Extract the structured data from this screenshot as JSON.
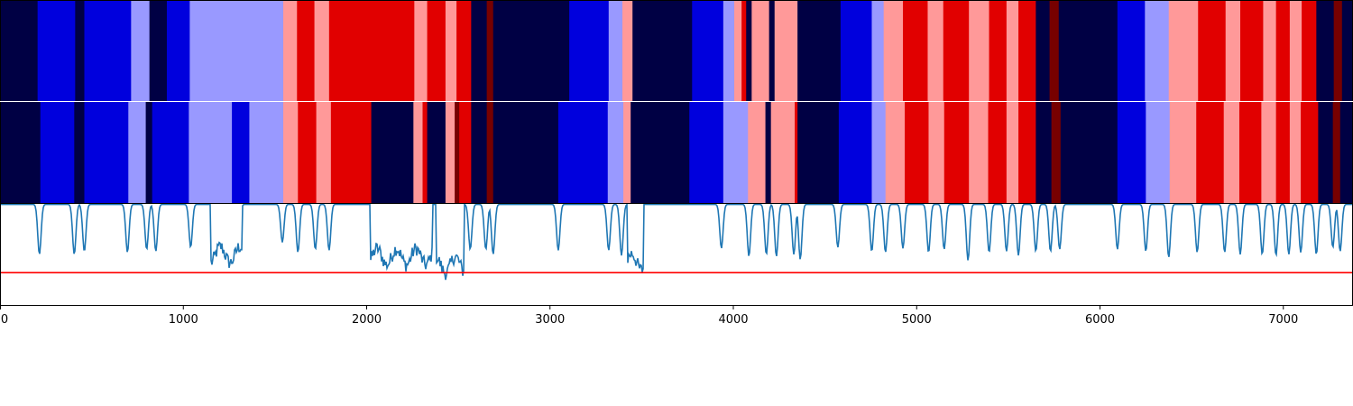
{
  "chart_data": [
    {
      "type": "heatmap",
      "title": "",
      "x_range": [
        0,
        7380
      ],
      "palette": {
        "dark_blue": "#000044",
        "blue": "#0000dd",
        "light_blue": "#9999ff",
        "light_red": "#ff9999",
        "red": "#e10000",
        "dark_red": "#770000"
      },
      "segments": [
        [
          0,
          205,
          "dark_blue"
        ],
        [
          205,
          410,
          "blue"
        ],
        [
          410,
          460,
          "dark_blue"
        ],
        [
          460,
          715,
          "blue"
        ],
        [
          715,
          815,
          "light_blue"
        ],
        [
          815,
          910,
          "dark_blue"
        ],
        [
          910,
          1035,
          "blue"
        ],
        [
          1035,
          1545,
          "light_blue"
        ],
        [
          1545,
          1620,
          "light_red"
        ],
        [
          1620,
          1715,
          "red"
        ],
        [
          1715,
          1795,
          "light_red"
        ],
        [
          1795,
          2260,
          "red"
        ],
        [
          2260,
          2330,
          "light_red"
        ],
        [
          2330,
          2430,
          "red"
        ],
        [
          2430,
          2490,
          "light_red"
        ],
        [
          2490,
          2570,
          "red"
        ],
        [
          2570,
          2655,
          "dark_blue"
        ],
        [
          2655,
          2690,
          "dark_red"
        ],
        [
          2690,
          3105,
          "dark_blue"
        ],
        [
          3105,
          3320,
          "blue"
        ],
        [
          3320,
          3395,
          "light_blue"
        ],
        [
          3395,
          3450,
          "light_red"
        ],
        [
          3450,
          3775,
          "dark_blue"
        ],
        [
          3775,
          3945,
          "blue"
        ],
        [
          3945,
          4005,
          "light_blue"
        ],
        [
          4005,
          4045,
          "light_red"
        ],
        [
          4045,
          4070,
          "red"
        ],
        [
          4070,
          4100,
          "dark_blue"
        ],
        [
          4100,
          4195,
          "light_red"
        ],
        [
          4195,
          4225,
          "dark_blue"
        ],
        [
          4225,
          4350,
          "light_red"
        ],
        [
          4350,
          4585,
          "dark_blue"
        ],
        [
          4585,
          4755,
          "blue"
        ],
        [
          4755,
          4820,
          "light_blue"
        ],
        [
          4820,
          4925,
          "light_red"
        ],
        [
          4925,
          5060,
          "red"
        ],
        [
          5060,
          5145,
          "light_red"
        ],
        [
          5145,
          5285,
          "red"
        ],
        [
          5285,
          5395,
          "light_red"
        ],
        [
          5395,
          5490,
          "red"
        ],
        [
          5490,
          5555,
          "light_red"
        ],
        [
          5555,
          5650,
          "red"
        ],
        [
          5650,
          5725,
          "dark_blue"
        ],
        [
          5725,
          5775,
          "dark_red"
        ],
        [
          5775,
          6095,
          "dark_blue"
        ],
        [
          6095,
          6245,
          "blue"
        ],
        [
          6245,
          6375,
          "light_blue"
        ],
        [
          6375,
          6535,
          "light_red"
        ],
        [
          6535,
          6685,
          "red"
        ],
        [
          6685,
          6765,
          "light_red"
        ],
        [
          6765,
          6890,
          "red"
        ],
        [
          6890,
          6960,
          "light_red"
        ],
        [
          6960,
          7035,
          "red"
        ],
        [
          7035,
          7100,
          "light_red"
        ],
        [
          7100,
          7180,
          "red"
        ],
        [
          7180,
          7275,
          "dark_blue"
        ],
        [
          7275,
          7320,
          "dark_red"
        ],
        [
          7320,
          7380,
          "dark_blue"
        ]
      ]
    },
    {
      "type": "heatmap",
      "title": "",
      "x_range": [
        0,
        7380
      ],
      "segments": [
        [
          0,
          220,
          "dark_blue"
        ],
        [
          220,
          405,
          "blue"
        ],
        [
          405,
          460,
          "dark_blue"
        ],
        [
          460,
          700,
          "blue"
        ],
        [
          700,
          795,
          "light_blue"
        ],
        [
          795,
          830,
          "dark_blue"
        ],
        [
          830,
          1030,
          "blue"
        ],
        [
          1030,
          1265,
          "light_blue"
        ],
        [
          1265,
          1360,
          "blue"
        ],
        [
          1360,
          1545,
          "light_blue"
        ],
        [
          1545,
          1625,
          "light_red"
        ],
        [
          1625,
          1725,
          "red"
        ],
        [
          1725,
          1805,
          "light_red"
        ],
        [
          1805,
          2025,
          "red"
        ],
        [
          2025,
          2255,
          "dark_blue"
        ],
        [
          2255,
          2305,
          "light_red"
        ],
        [
          2305,
          2330,
          "red"
        ],
        [
          2330,
          2430,
          "dark_blue"
        ],
        [
          2430,
          2480,
          "light_red"
        ],
        [
          2480,
          2505,
          "dark_red"
        ],
        [
          2505,
          2570,
          "red"
        ],
        [
          2570,
          2655,
          "dark_blue"
        ],
        [
          2655,
          2690,
          "dark_red"
        ],
        [
          2690,
          3045,
          "dark_blue"
        ],
        [
          3045,
          3315,
          "blue"
        ],
        [
          3315,
          3400,
          "light_blue"
        ],
        [
          3400,
          3440,
          "light_red"
        ],
        [
          3440,
          3760,
          "dark_blue"
        ],
        [
          3760,
          3945,
          "blue"
        ],
        [
          3945,
          4080,
          "light_blue"
        ],
        [
          4080,
          4175,
          "light_red"
        ],
        [
          4175,
          4205,
          "dark_blue"
        ],
        [
          4205,
          4335,
          "light_red"
        ],
        [
          4335,
          4350,
          "red"
        ],
        [
          4350,
          4575,
          "dark_blue"
        ],
        [
          4575,
          4755,
          "blue"
        ],
        [
          4755,
          4830,
          "light_blue"
        ],
        [
          4830,
          4935,
          "light_red"
        ],
        [
          4935,
          5065,
          "red"
        ],
        [
          5065,
          5150,
          "light_red"
        ],
        [
          5150,
          5285,
          "red"
        ],
        [
          5285,
          5390,
          "light_red"
        ],
        [
          5390,
          5490,
          "red"
        ],
        [
          5490,
          5555,
          "light_red"
        ],
        [
          5555,
          5650,
          "red"
        ],
        [
          5650,
          5735,
          "dark_blue"
        ],
        [
          5735,
          5785,
          "dark_red"
        ],
        [
          5785,
          6095,
          "dark_blue"
        ],
        [
          6095,
          6250,
          "blue"
        ],
        [
          6250,
          6380,
          "light_blue"
        ],
        [
          6380,
          6525,
          "light_red"
        ],
        [
          6525,
          6675,
          "red"
        ],
        [
          6675,
          6760,
          "light_red"
        ],
        [
          6760,
          6880,
          "red"
        ],
        [
          6880,
          6960,
          "light_red"
        ],
        [
          6960,
          7035,
          "red"
        ],
        [
          7035,
          7095,
          "light_red"
        ],
        [
          7095,
          7190,
          "red"
        ],
        [
          7190,
          7270,
          "dark_blue"
        ],
        [
          7270,
          7310,
          "dark_red"
        ],
        [
          7310,
          7380,
          "dark_blue"
        ]
      ]
    },
    {
      "type": "line",
      "title": "",
      "xlabel": "",
      "ylabel": "",
      "x_range": [
        0,
        7380
      ],
      "y_range": [
        0,
        1
      ],
      "grid": false,
      "line_color": "#1f77b4",
      "threshold": {
        "value": 0.32,
        "color": "#ff0000"
      },
      "x_ticks": [
        0,
        1000,
        2000,
        3000,
        4000,
        5000,
        6000,
        7000
      ],
      "baseline": 0.995,
      "dips": [
        [
          215,
          0.5
        ],
        [
          405,
          0.5
        ],
        [
          460,
          0.53
        ],
        [
          695,
          0.52
        ],
        [
          800,
          0.55
        ],
        [
          850,
          0.53
        ],
        [
          1040,
          0.57
        ],
        [
          1300,
          0.62
        ],
        [
          1540,
          0.62
        ],
        [
          1625,
          0.52
        ],
        [
          1720,
          0.55
        ],
        [
          1795,
          0.54
        ],
        [
          2320,
          0.52
        ],
        [
          2565,
          0.55
        ],
        [
          2650,
          0.55
        ],
        [
          2690,
          0.5
        ],
        [
          3045,
          0.54
        ],
        [
          3320,
          0.54
        ],
        [
          3390,
          0.49
        ],
        [
          3935,
          0.56
        ],
        [
          4085,
          0.48
        ],
        [
          4180,
          0.5
        ],
        [
          4235,
          0.48
        ],
        [
          4330,
          0.5
        ],
        [
          4365,
          0.45
        ],
        [
          4570,
          0.57
        ],
        [
          4755,
          0.53
        ],
        [
          4830,
          0.52
        ],
        [
          4925,
          0.56
        ],
        [
          5065,
          0.52
        ],
        [
          5150,
          0.55
        ],
        [
          5280,
          0.44
        ],
        [
          5395,
          0.52
        ],
        [
          5490,
          0.53
        ],
        [
          5555,
          0.49
        ],
        [
          5650,
          0.53
        ],
        [
          5730,
          0.53
        ],
        [
          5780,
          0.55
        ],
        [
          6095,
          0.55
        ],
        [
          6250,
          0.53
        ],
        [
          6375,
          0.47
        ],
        [
          6530,
          0.52
        ],
        [
          6680,
          0.52
        ],
        [
          6765,
          0.5
        ],
        [
          6885,
          0.5
        ],
        [
          6960,
          0.49
        ],
        [
          7030,
          0.5
        ],
        [
          7095,
          0.52
        ],
        [
          7180,
          0.5
        ],
        [
          7270,
          0.57
        ],
        [
          7310,
          0.53
        ]
      ],
      "noisy_regions": [
        {
          "start": 1150,
          "end": 1320,
          "level": 0.47
        },
        {
          "start": 2020,
          "end": 2360,
          "level": 0.45
        },
        {
          "start": 2380,
          "end": 2530,
          "level": 0.37
        },
        {
          "start": 3420,
          "end": 3510,
          "level": 0.4
        }
      ]
    }
  ]
}
